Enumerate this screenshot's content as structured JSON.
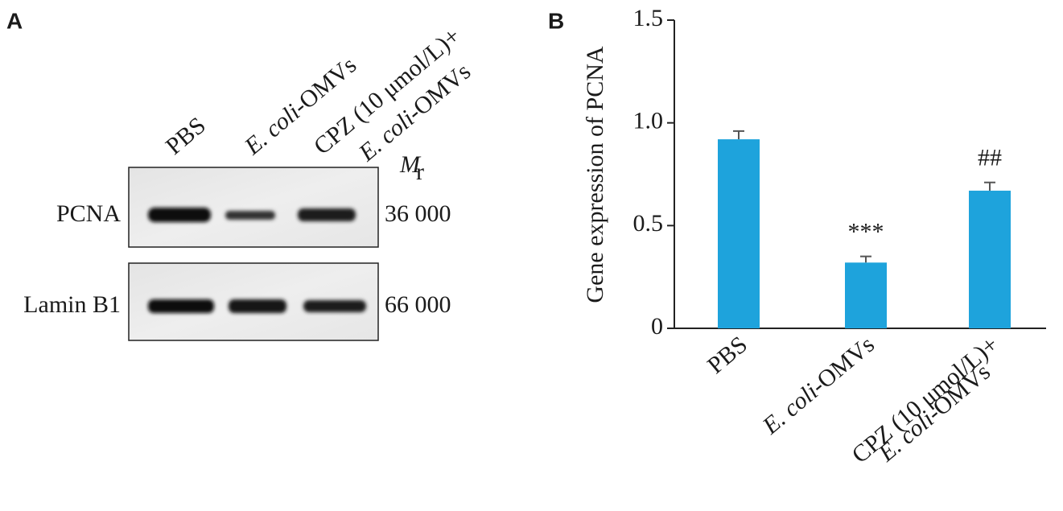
{
  "panel_a": {
    "label": "A",
    "lanes": [
      [
        [
          {
            "text": "PBS"
          }
        ]
      ],
      [
        [
          {
            "text": "E. coli",
            "italic": true
          },
          {
            "text": "-OMVs"
          }
        ]
      ],
      [
        [
          {
            "text": "CPZ (10 μmol/L)+"
          }
        ],
        [
          {
            "text": "E. coli",
            "italic": true
          },
          {
            "text": "-OMVs"
          }
        ]
      ]
    ],
    "mr_symbol": "M",
    "mr_subscript": "r",
    "rows": [
      {
        "name": "PCNA",
        "mr": "36 000"
      },
      {
        "name": "Lamin B1",
        "mr": "66 000"
      }
    ]
  },
  "chart_data": {
    "type": "bar",
    "label": "B",
    "ylabel": "Gene expression of PCNA",
    "categories": [
      [
        [
          {
            "text": "PBS"
          }
        ]
      ],
      [
        [
          {
            "text": "E. coli",
            "italic": true
          },
          {
            "text": "-OMVs"
          }
        ]
      ],
      [
        [
          {
            "text": "CPZ (10 μmol/L)+"
          }
        ],
        [
          {
            "text": "E. coli",
            "italic": true
          },
          {
            "text": "-OMVs"
          }
        ]
      ]
    ],
    "values": [
      0.92,
      0.32,
      0.67
    ],
    "errors": [
      0.04,
      0.03,
      0.04
    ],
    "color": "#1ea3dc",
    "annotations": [
      {
        "index": 1,
        "text": "***"
      },
      {
        "index": 2,
        "text": "##"
      }
    ],
    "ylim": [
      0,
      1.5
    ],
    "yticks": [
      0,
      0.5,
      {
        "value": 1,
        "label": "1.0"
      },
      1.5
    ]
  }
}
